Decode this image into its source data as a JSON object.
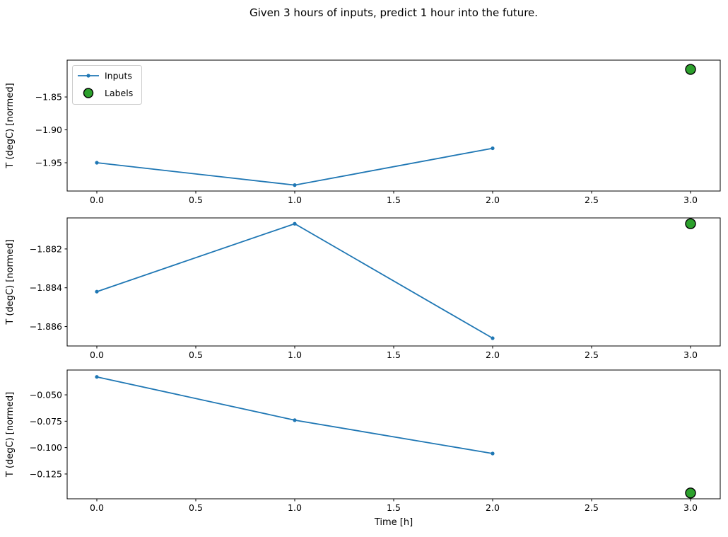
{
  "figure": {
    "title": "Given 3 hours of inputs, predict 1 hour into the future.",
    "xlabel": "Time [h]",
    "ylabel": "T (degC) [normed]"
  },
  "legend": {
    "inputs_label": "Inputs",
    "labels_label": "Labels"
  },
  "colors": {
    "inputs": "#1f77b4",
    "labels_fill": "#2ca02c",
    "labels_edge": "#000000",
    "axes_edge": "#000000",
    "legend_border": "#cccccc",
    "text": "#000000"
  },
  "chart_data": [
    {
      "name": "subplot-1",
      "type": "line",
      "ylabel": "T (degC) [normed]",
      "series": [
        {
          "name": "Inputs",
          "type": "line",
          "x": [
            0,
            1,
            2
          ],
          "y": [
            -1.95,
            -1.984,
            -1.928
          ]
        },
        {
          "name": "Labels",
          "type": "scatter",
          "x": [
            3
          ],
          "y": [
            -1.808
          ]
        }
      ],
      "xlim": [
        -0.15,
        3.15
      ],
      "ylim": [
        -1.993,
        -1.794
      ],
      "xticks": {
        "values": [
          0,
          0.5,
          1,
          1.5,
          2,
          2.5,
          3
        ],
        "labels": [
          "0.0",
          "0.5",
          "1.0",
          "1.5",
          "2.0",
          "2.5",
          "3.0"
        ]
      },
      "yticks": {
        "values": [
          -1.85,
          -1.9,
          -1.95
        ],
        "labels": [
          "−1.85",
          "−1.90",
          "−1.95"
        ]
      },
      "legend_visible": true,
      "grid": false
    },
    {
      "name": "subplot-2",
      "type": "line",
      "ylabel": "T (degC) [normed]",
      "series": [
        {
          "name": "Inputs",
          "type": "line",
          "x": [
            0,
            1,
            2
          ],
          "y": [
            -1.8842,
            -1.8807,
            -1.8866
          ]
        },
        {
          "name": "Labels",
          "type": "scatter",
          "x": [
            3
          ],
          "y": [
            -1.8807
          ]
        }
      ],
      "xlim": [
        -0.15,
        3.15
      ],
      "ylim": [
        -1.887,
        -1.8804
      ],
      "xticks": {
        "values": [
          0,
          0.5,
          1,
          1.5,
          2,
          2.5,
          3
        ],
        "labels": [
          "0.0",
          "0.5",
          "1.0",
          "1.5",
          "2.0",
          "2.5",
          "3.0"
        ]
      },
      "yticks": {
        "values": [
          -1.882,
          -1.884,
          -1.886
        ],
        "labels": [
          "−1.882",
          "−1.884",
          "−1.886"
        ]
      },
      "legend_visible": false,
      "grid": false
    },
    {
      "name": "subplot-3",
      "type": "line",
      "ylabel": "T (degC) [normed]",
      "series": [
        {
          "name": "Inputs",
          "type": "line",
          "x": [
            0,
            1,
            2
          ],
          "y": [
            -0.033,
            -0.074,
            -0.1056
          ]
        },
        {
          "name": "Labels",
          "type": "scatter",
          "x": [
            3
          ],
          "y": [
            -0.143
          ]
        }
      ],
      "xlim": [
        -0.15,
        3.15
      ],
      "ylim": [
        -0.1485,
        -0.0265
      ],
      "xticks": {
        "values": [
          0,
          0.5,
          1,
          1.5,
          2,
          2.5,
          3
        ],
        "labels": [
          "0.0",
          "0.5",
          "1.0",
          "1.5",
          "2.0",
          "2.5",
          "3.0"
        ]
      },
      "yticks": {
        "values": [
          -0.05,
          -0.075,
          -0.1,
          -0.125
        ],
        "labels": [
          "−0.050",
          "−0.075",
          "−0.100",
          "−0.125"
        ]
      },
      "legend_visible": false,
      "grid": false
    }
  ]
}
